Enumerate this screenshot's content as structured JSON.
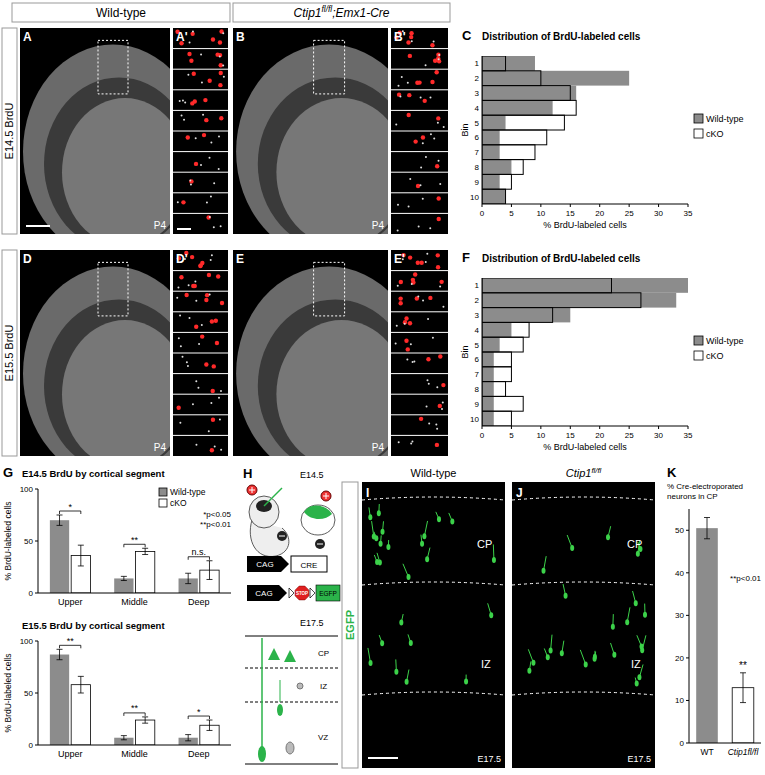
{
  "headers": [
    {
      "text": "Wild-type"
    },
    {
      "text": "Ctip1",
      "sup": "fl/fl",
      "after": ";Emx1-Cre"
    }
  ],
  "rows": [
    "E14.5 BrdU",
    "E15.5 BrdU"
  ],
  "images": [
    {
      "letter": "A",
      "age": "P4"
    },
    {
      "letter": "A'"
    },
    {
      "letter": "B",
      "age": "P4"
    },
    {
      "letter": "B'"
    },
    {
      "letter": "D",
      "age": "P4"
    },
    {
      "letter": "D'"
    },
    {
      "letter": "E",
      "age": "P4"
    },
    {
      "letter": "E'"
    }
  ],
  "chart_letters": [
    "C",
    "F",
    "G",
    "K"
  ],
  "electroporation": {
    "letter": "H",
    "stage": "E14.5",
    "construct1": [
      "CAG",
      "CRE"
    ],
    "construct2": [
      "CAG",
      "STOP",
      "EGFP"
    ],
    "stage2": "E17.5",
    "layers": [
      "CP",
      "IZ",
      "VZ"
    ]
  },
  "egfp": {
    "label": "EGFP",
    "panels": [
      {
        "letter": "I",
        "title": {
          "text": "Wild-type"
        }
      },
      {
        "letter": "J",
        "title": {
          "text": "Ctip1",
          "sup": "fl/fl"
        }
      }
    ],
    "layers": [
      "CP",
      "IZ"
    ],
    "stage": "E17.5"
  },
  "chart_data": [
    {
      "type": "bar",
      "orientation": "horizontal",
      "title": "Distribution of BrdU-labeled cells",
      "x_label": "% BrdU-labeled cells",
      "y_label": "Bin",
      "categories": [
        "1",
        "2",
        "3",
        "4",
        "5",
        "6",
        "7",
        "8",
        "9",
        "10"
      ],
      "series": [
        {
          "name": "Wild-type",
          "color": "#8c8c8c",
          "values": [
            9,
            25,
            16,
            12,
            4,
            3,
            3,
            5,
            3,
            4
          ]
        },
        {
          "name": "cKO",
          "color": "#ffffff",
          "values": [
            4,
            10,
            15,
            16,
            14,
            11,
            9,
            7,
            5,
            4
          ]
        }
      ],
      "xlim": [
        0,
        35
      ],
      "xticks": [
        0,
        5,
        10,
        15,
        20,
        25,
        30,
        35
      ],
      "legend": "right"
    },
    {
      "type": "bar",
      "orientation": "horizontal",
      "title": "Distribution of BrdU-labeled cells",
      "x_label": "% BrdU-labeled cells",
      "y_label": "Bin",
      "categories": [
        "1",
        "2",
        "3",
        "4",
        "5",
        "6",
        "7",
        "8",
        "9",
        "10"
      ],
      "series": [
        {
          "name": "Wild-type",
          "color": "#8c8c8c",
          "values": [
            35,
            33,
            15,
            5,
            3,
            2,
            2,
            2,
            2,
            2
          ]
        },
        {
          "name": "cKO",
          "color": "#ffffff",
          "values": [
            22,
            27,
            12,
            8,
            7,
            5,
            5,
            4,
            7,
            5
          ]
        }
      ],
      "xlim": [
        0,
        35
      ],
      "xticks": [
        0,
        5,
        10,
        15,
        20,
        25,
        30,
        35
      ],
      "legend": "right"
    },
    {
      "type": "bar",
      "title": "E14.5 BrdU by cortical segment",
      "y_label": "% BrdU-labeled cells",
      "categories": [
        "Upper",
        "Middle",
        "Deep"
      ],
      "series": [
        {
          "name": "Wild-type",
          "color": "#8c8c8c",
          "values": [
            70,
            14,
            14
          ],
          "errors": [
            5,
            2,
            5
          ]
        },
        {
          "name": "cKO",
          "color": "#ffffff",
          "values": [
            36,
            40,
            22
          ],
          "errors": [
            10,
            3,
            9
          ]
        }
      ],
      "ylim": [
        0,
        100
      ],
      "yticks": [
        0,
        50,
        100
      ],
      "annotations": [
        "*",
        "**",
        "n.s."
      ],
      "notes": [
        "*p<0.05",
        "**p<0.01"
      ],
      "legend": "top right"
    },
    {
      "type": "bar",
      "title": "E15.5 BrdU by cortical segment",
      "y_label": "% BrdU-labeled cells",
      "categories": [
        "Upper",
        "Middle",
        "Deep"
      ],
      "series": [
        {
          "color": "#8c8c8c",
          "values": [
            87,
            7,
            7
          ],
          "errors": [
            5,
            2,
            3
          ]
        },
        {
          "color": "#ffffff",
          "values": [
            58,
            24,
            19
          ],
          "errors": [
            8,
            3,
            5
          ]
        }
      ],
      "ylim": [
        0,
        100
      ],
      "yticks": [
        0,
        50,
        100
      ],
      "annotations": [
        "**",
        "**",
        "*"
      ]
    },
    {
      "type": "bar",
      "title": "% Cre-electroporated neurons in CP",
      "categories": [
        "WT",
        "Ctip1fl/fl"
      ],
      "values": [
        50.5,
        13
      ],
      "errors": [
        2.5,
        3.5
      ],
      "colors": [
        "#8c8c8c",
        "#ffffff"
      ],
      "ylim": [
        0,
        55
      ],
      "yticks": [
        0,
        10,
        20,
        30,
        40,
        50
      ],
      "annotations": [
        null,
        "**"
      ],
      "notes": [
        "**p<0.01"
      ]
    }
  ]
}
